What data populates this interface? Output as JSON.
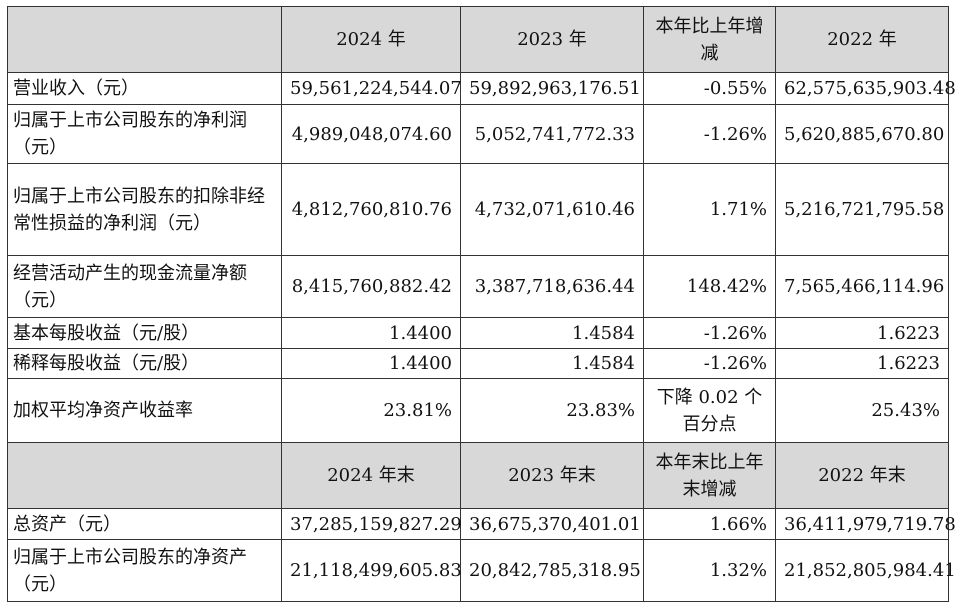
{
  "header1": {
    "corner": "",
    "col_2024": "2024 年",
    "col_2023": "2023 年",
    "col_change": "本年比上年增减",
    "col_2022": "2022 年"
  },
  "rows1": [
    {
      "label": "营业收入（元）",
      "v2024": "59,561,224,544.07",
      "v2023": "59,892,963,176.51",
      "change": "-0.55%",
      "v2022": "62,575,635,903.48"
    },
    {
      "label": "归属于上市公司股东的净利润（元）",
      "v2024": "4,989,048,074.60",
      "v2023": "5,052,741,772.33",
      "change": "-1.26%",
      "v2022": "5,620,885,670.80"
    },
    {
      "label": "归属于上市公司股东的扣除非经常性损益的净利润（元）",
      "v2024": "4,812,760,810.76",
      "v2023": "4,732,071,610.46",
      "change": "1.71%",
      "v2022": "5,216,721,795.58"
    },
    {
      "label": "经营活动产生的现金流量净额（元）",
      "v2024": "8,415,760,882.42",
      "v2023": "3,387,718,636.44",
      "change": "148.42%",
      "v2022": "7,565,466,114.96"
    },
    {
      "label": "基本每股收益（元/股）",
      "v2024": "1.4400",
      "v2023": "1.4584",
      "change": "-1.26%",
      "v2022": "1.6223"
    },
    {
      "label": "稀释每股收益（元/股）",
      "v2024": "1.4400",
      "v2023": "1.4584",
      "change": "-1.26%",
      "v2022": "1.6223"
    },
    {
      "label": "加权平均净资产收益率",
      "v2024": "23.81%",
      "v2023": "23.83%",
      "change": "下降 0.02 个百分点",
      "v2022": "25.43%"
    }
  ],
  "header2": {
    "corner": "",
    "col_2024": "2024 年末",
    "col_2023": "2023 年末",
    "col_change": "本年末比上年末增减",
    "col_2022": "2022 年末"
  },
  "rows2": [
    {
      "label": "总资产（元）",
      "v2024": "37,285,159,827.29",
      "v2023": "36,675,370,401.01",
      "change": "1.66%",
      "v2022": "36,411,979,719.78"
    },
    {
      "label": "归属于上市公司股东的净资产（元）",
      "v2024": "21,118,499,605.83",
      "v2023": "20,842,785,318.95",
      "change": "1.32%",
      "v2022": "21,852,805,984.41"
    }
  ]
}
